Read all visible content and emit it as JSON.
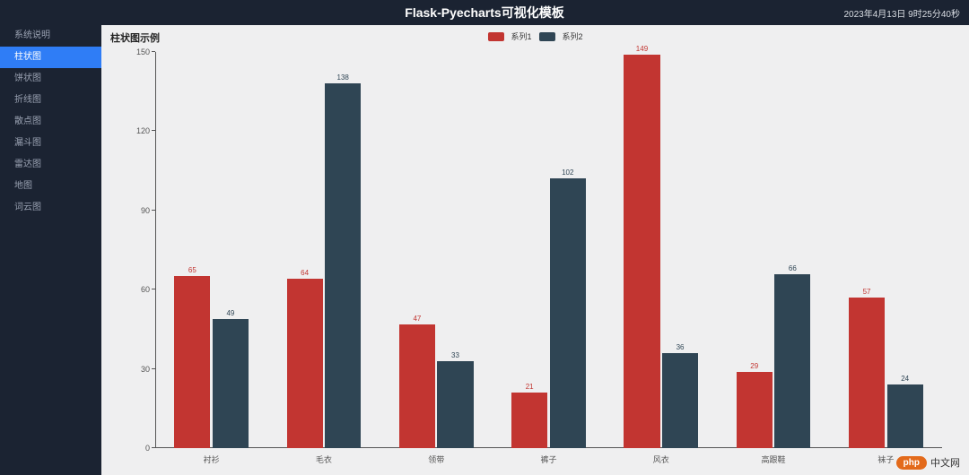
{
  "header": {
    "title": "Flask-Pyecharts可视化模板",
    "timestamp": "2023年4月13日 9时25分40秒"
  },
  "sidebar": {
    "items": [
      {
        "label": "系统说明",
        "active": false
      },
      {
        "label": "柱状图",
        "active": true
      },
      {
        "label": "饼状图",
        "active": false
      },
      {
        "label": "折线图",
        "active": false
      },
      {
        "label": "散点图",
        "active": false
      },
      {
        "label": "漏斗图",
        "active": false
      },
      {
        "label": "雷达图",
        "active": false
      },
      {
        "label": "地图",
        "active": false
      },
      {
        "label": "词云图",
        "active": false
      }
    ]
  },
  "chart": {
    "title": "柱状图示例",
    "type": "bar",
    "legend": [
      {
        "name": "系列1",
        "color": "#c23531"
      },
      {
        "name": "系列2",
        "color": "#2f4554"
      }
    ],
    "categories": [
      "衬衫",
      "毛衣",
      "领带",
      "裤子",
      "风衣",
      "高跟鞋",
      "袜子"
    ],
    "series1": [
      65,
      64,
      47,
      21,
      149,
      29,
      57
    ],
    "series2": [
      49,
      138,
      33,
      102,
      36,
      66,
      24
    ],
    "series1_color": "#c23531",
    "series2_color": "#2f4554",
    "label_color1": "#c23531",
    "label_color2": "#2f4554",
    "ylim": [
      0,
      150
    ],
    "yticks": [
      0,
      30,
      60,
      90,
      120,
      150
    ],
    "background_color": "#efeff0",
    "axis_color": "#555555",
    "title_fontsize": 11,
    "label_fontsize": 9,
    "bar_label_fontsize": 8,
    "bar_gap_ratio": 0.02,
    "bar_width_ratio": 0.32,
    "category_pad_ratio": 0.17
  },
  "watermark": {
    "pill": "php",
    "text": "中文网"
  }
}
